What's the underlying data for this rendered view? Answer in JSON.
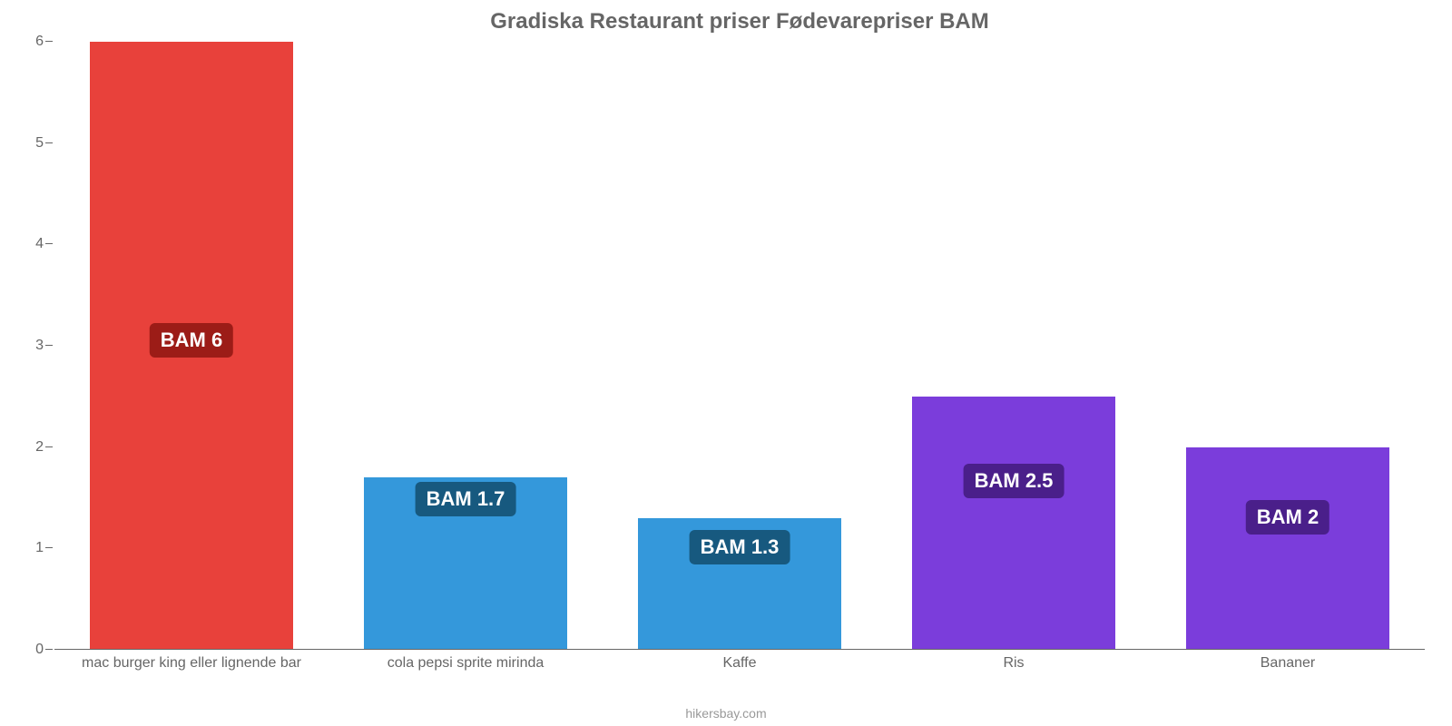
{
  "chart": {
    "type": "bar",
    "title": "Gradiska Restaurant priser Fødevarepriser BAM",
    "title_fontsize": 24,
    "title_color": "#666666",
    "background_color": "#ffffff",
    "axis_color": "#666666",
    "label_color": "#666666",
    "x_label_fontsize": 16,
    "value_label_fontsize": 22,
    "value_label_text_color": "#ffffff",
    "bar_width_ratio": 0.74,
    "ylim": [
      0,
      6
    ],
    "yticks": [
      0,
      1,
      2,
      3,
      4,
      5,
      6
    ],
    "categories": [
      "mac burger king eller lignende bar",
      "cola pepsi sprite mirinda",
      "Kaffe",
      "Ris",
      "Bananer"
    ],
    "values": [
      6,
      1.7,
      1.3,
      2.5,
      2
    ],
    "value_labels": [
      "BAM 6",
      "BAM 1.7",
      "BAM 1.3",
      "BAM 2.5",
      "BAM 2"
    ],
    "bar_colors": [
      "#e8413b",
      "#3498db",
      "#3498db",
      "#7b3ddb",
      "#7b3ddb"
    ],
    "badge_colors": [
      "#9c1c17",
      "#17597f",
      "#17597f",
      "#4a1f8a",
      "#4a1f8a"
    ],
    "value_label_positions_pct": [
      48,
      22,
      14,
      25,
      19
    ],
    "footer": "hikersbay.com",
    "footer_color": "#999999"
  }
}
